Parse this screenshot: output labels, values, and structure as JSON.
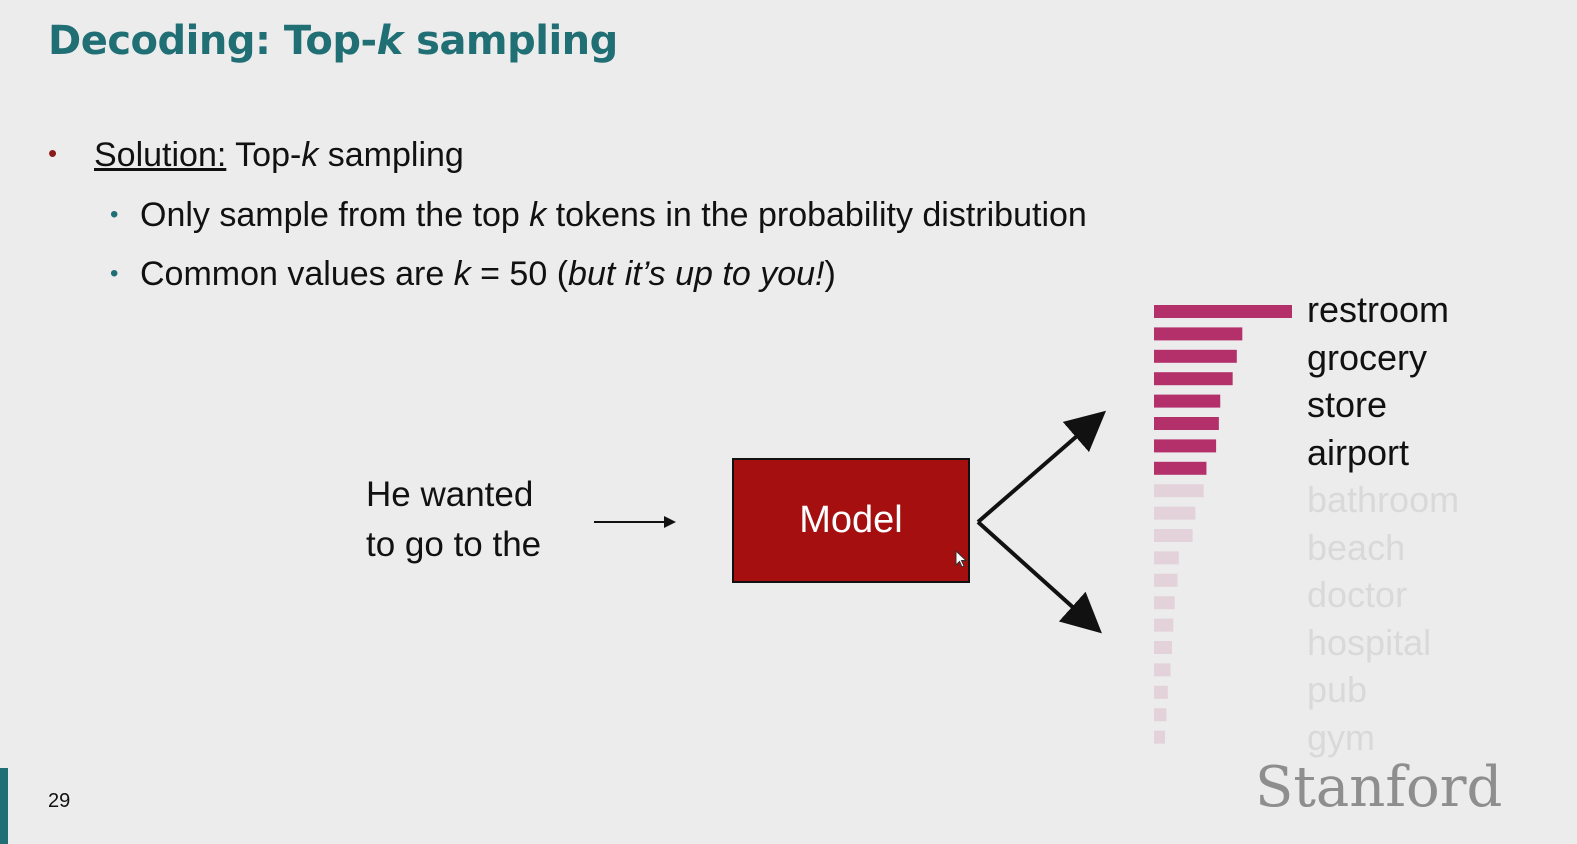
{
  "slide": {
    "title_prefix": "Decoding: Top-",
    "title_k": "k",
    "title_suffix": " sampling",
    "bullet1_label": "Solution:",
    "bullet1_text_a": " Top-",
    "bullet1_k": "k",
    "bullet1_text_b": " sampling",
    "sub1_a": "Only sample from the top ",
    "sub1_k": "k",
    "sub1_b": " tokens in the probability distribution",
    "sub2_a": "Common values are ",
    "sub2_k": "k",
    "sub2_b": " = 50 (",
    "sub2_italic": "but it’s up to you!",
    "sub2_c": ")",
    "input_line1": "He wanted",
    "input_line2": "to go to the",
    "model_label": "Model",
    "logo": "Stanford",
    "page_number": "29"
  },
  "chart_data": {
    "type": "bar",
    "orientation": "horizontal",
    "bar_values": [
      1.0,
      0.64,
      0.6,
      0.57,
      0.48,
      0.47,
      0.45,
      0.38,
      0.36,
      0.3,
      0.28,
      0.18,
      0.17,
      0.15,
      0.14,
      0.13,
      0.12,
      0.1,
      0.09,
      0.08
    ],
    "top_k_count": 8,
    "colors": {
      "selected": "#b3306a",
      "unselected": "#e3d2d9"
    },
    "tokens": [
      {
        "label": "restroom",
        "selected": true
      },
      {
        "label": "grocery",
        "selected": true
      },
      {
        "label": "store",
        "selected": true
      },
      {
        "label": "airport",
        "selected": true
      },
      {
        "label": "bathroom",
        "selected": false
      },
      {
        "label": "beach",
        "selected": false
      },
      {
        "label": "doctor",
        "selected": false
      },
      {
        "label": "hospital",
        "selected": false
      },
      {
        "label": "pub",
        "selected": false
      },
      {
        "label": "gym",
        "selected": false
      }
    ]
  },
  "colors": {
    "title": "#1f6f75",
    "model_box": "#a50f0f",
    "bullet_main": "#8b1a1a",
    "bullet_sub": "#1f6f75"
  }
}
